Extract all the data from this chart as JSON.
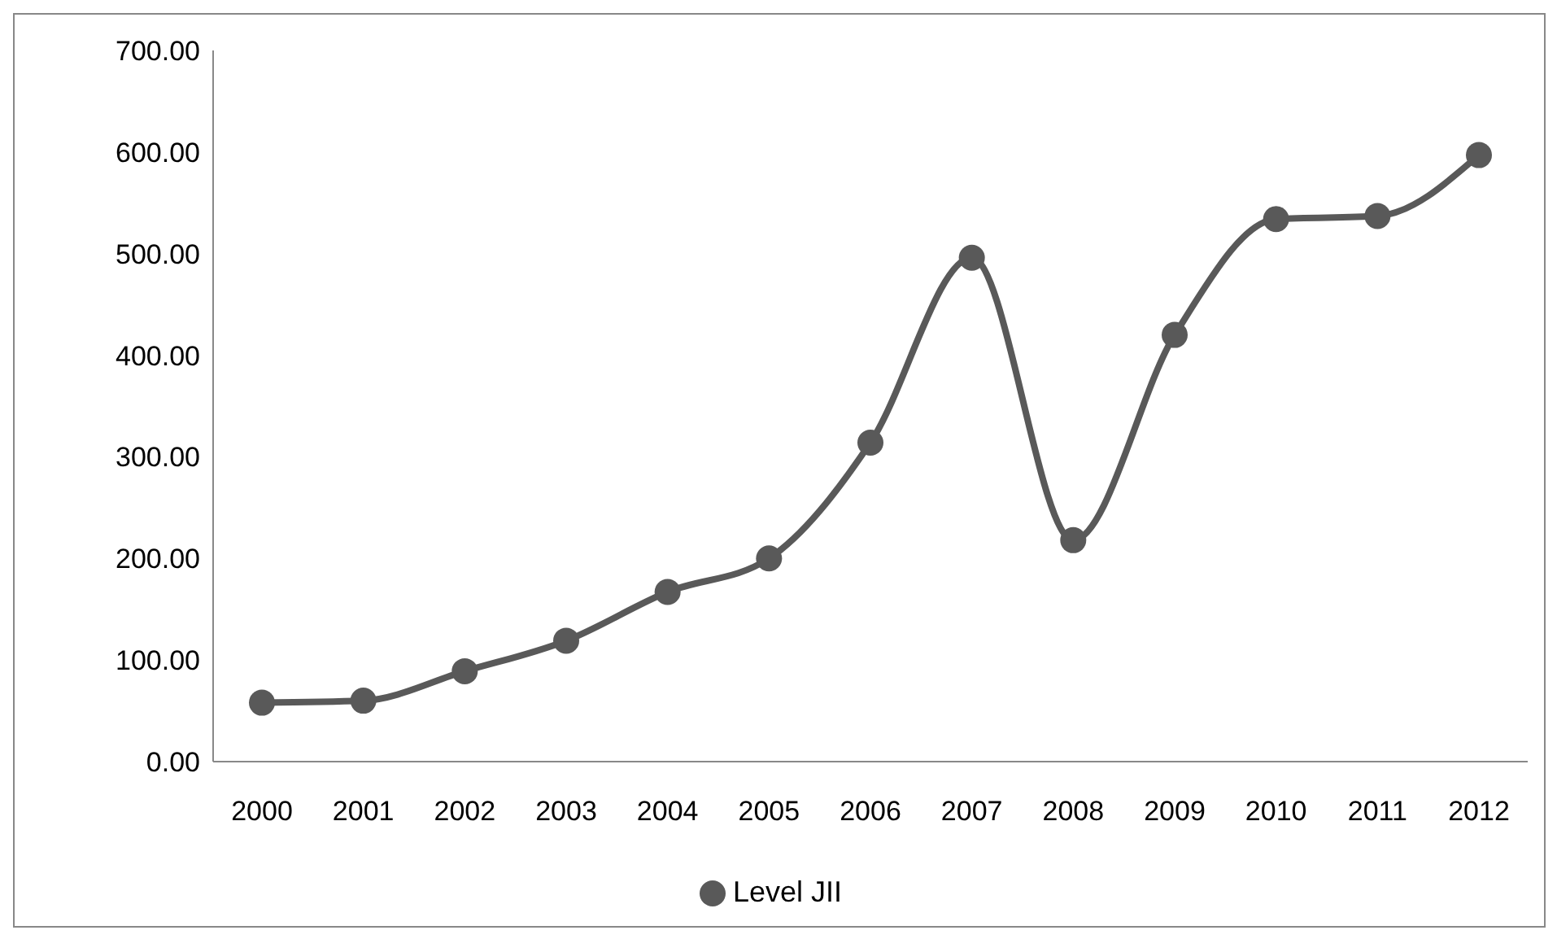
{
  "chart_data": {
    "type": "line",
    "categories": [
      "2000",
      "2001",
      "2002",
      "2003",
      "2004",
      "2005",
      "2006",
      "2007",
      "2008",
      "2009",
      "2010",
      "2011",
      "2012"
    ],
    "series": [
      {
        "name": "Level JII",
        "color": "#595959",
        "values": [
          58,
          60,
          89,
          119,
          167,
          200,
          314,
          496,
          218,
          420,
          534,
          537,
          597
        ]
      }
    ],
    "ylim": [
      0,
      700
    ],
    "yticks": [
      {
        "value": 0,
        "label": "0.00"
      },
      {
        "value": 100,
        "label": "100.00"
      },
      {
        "value": 200,
        "label": "200.00"
      },
      {
        "value": 300,
        "label": "300.00"
      },
      {
        "value": 400,
        "label": "400.00"
      },
      {
        "value": 500,
        "label": "500.00"
      },
      {
        "value": 600,
        "label": "600.00"
      },
      {
        "value": 700,
        "label": "700.00"
      }
    ],
    "grid": false,
    "legend": "bottom",
    "marker": "circle",
    "line_style": "solid"
  }
}
